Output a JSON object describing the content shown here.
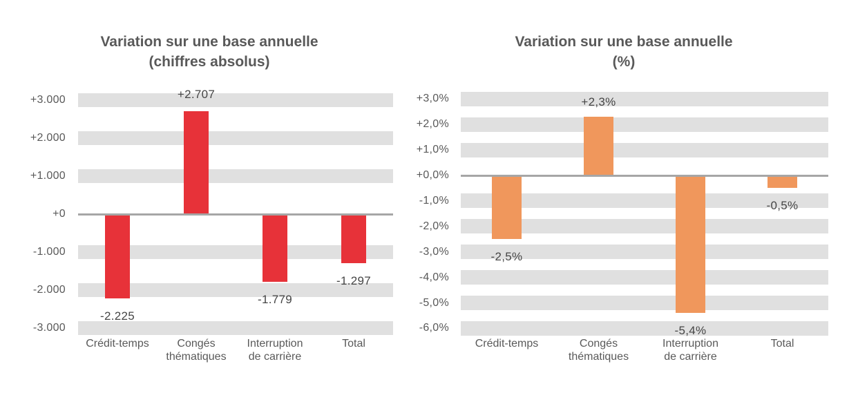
{
  "chart_data": [
    {
      "type": "bar",
      "title_line1": "Variation sur une base annuelle",
      "title_line2": "(chiffres absolus)",
      "categories": [
        [
          "Crédit-temps"
        ],
        [
          "Congés",
          "thématiques"
        ],
        [
          "Interruption",
          "de carrière"
        ],
        [
          "Total"
        ]
      ],
      "values": [
        -2225,
        2707,
        -1779,
        -1297
      ],
      "data_labels": [
        "-2.225",
        "+2.707",
        "-1.779",
        "-1.297"
      ],
      "y_ticks": [
        {
          "v": 3000,
          "label": "+3.000"
        },
        {
          "v": 2000,
          "label": "+2.000"
        },
        {
          "v": 1000,
          "label": "+1.000"
        },
        {
          "v": 0,
          "label": "+0"
        },
        {
          "v": -1000,
          "label": "-1.000"
        },
        {
          "v": -2000,
          "label": "-2.000"
        },
        {
          "v": -3000,
          "label": "-3.000"
        }
      ],
      "ylim": [
        -3000,
        3000
      ],
      "grid": "horizontal-bands",
      "legend": "none",
      "bar_color": "#E73239",
      "gridline_color": "#E0E0E0",
      "axis_color": "#A6A6A6"
    },
    {
      "type": "bar",
      "title_line1": "Variation sur une base annuelle",
      "title_line2": "(%)",
      "categories": [
        [
          "Crédit-temps"
        ],
        [
          "Congés",
          "thématiques"
        ],
        [
          "Interruption",
          "de carrière"
        ],
        [
          "Total"
        ]
      ],
      "values": [
        -2.5,
        2.3,
        -5.4,
        -0.5
      ],
      "data_labels": [
        "-2,5%",
        "+2,3%",
        "-5,4%",
        "-0,5%"
      ],
      "y_ticks": [
        {
          "v": 3,
          "label": "+3,0%"
        },
        {
          "v": 2,
          "label": "+2,0%"
        },
        {
          "v": 1,
          "label": "+1,0%"
        },
        {
          "v": 0,
          "label": "+0,0%"
        },
        {
          "v": -1,
          "label": "-1,0%"
        },
        {
          "v": -2,
          "label": "-2,0%"
        },
        {
          "v": -3,
          "label": "-3,0%"
        },
        {
          "v": -4,
          "label": "-4,0%"
        },
        {
          "v": -5,
          "label": "-5,0%"
        },
        {
          "v": -6,
          "label": "-6,0%"
        }
      ],
      "ylim": [
        -6,
        3
      ],
      "grid": "horizontal-bands",
      "legend": "none",
      "bar_color": "#F0975C",
      "gridline_color": "#E0E0E0",
      "axis_color": "#A6A6A6"
    }
  ]
}
